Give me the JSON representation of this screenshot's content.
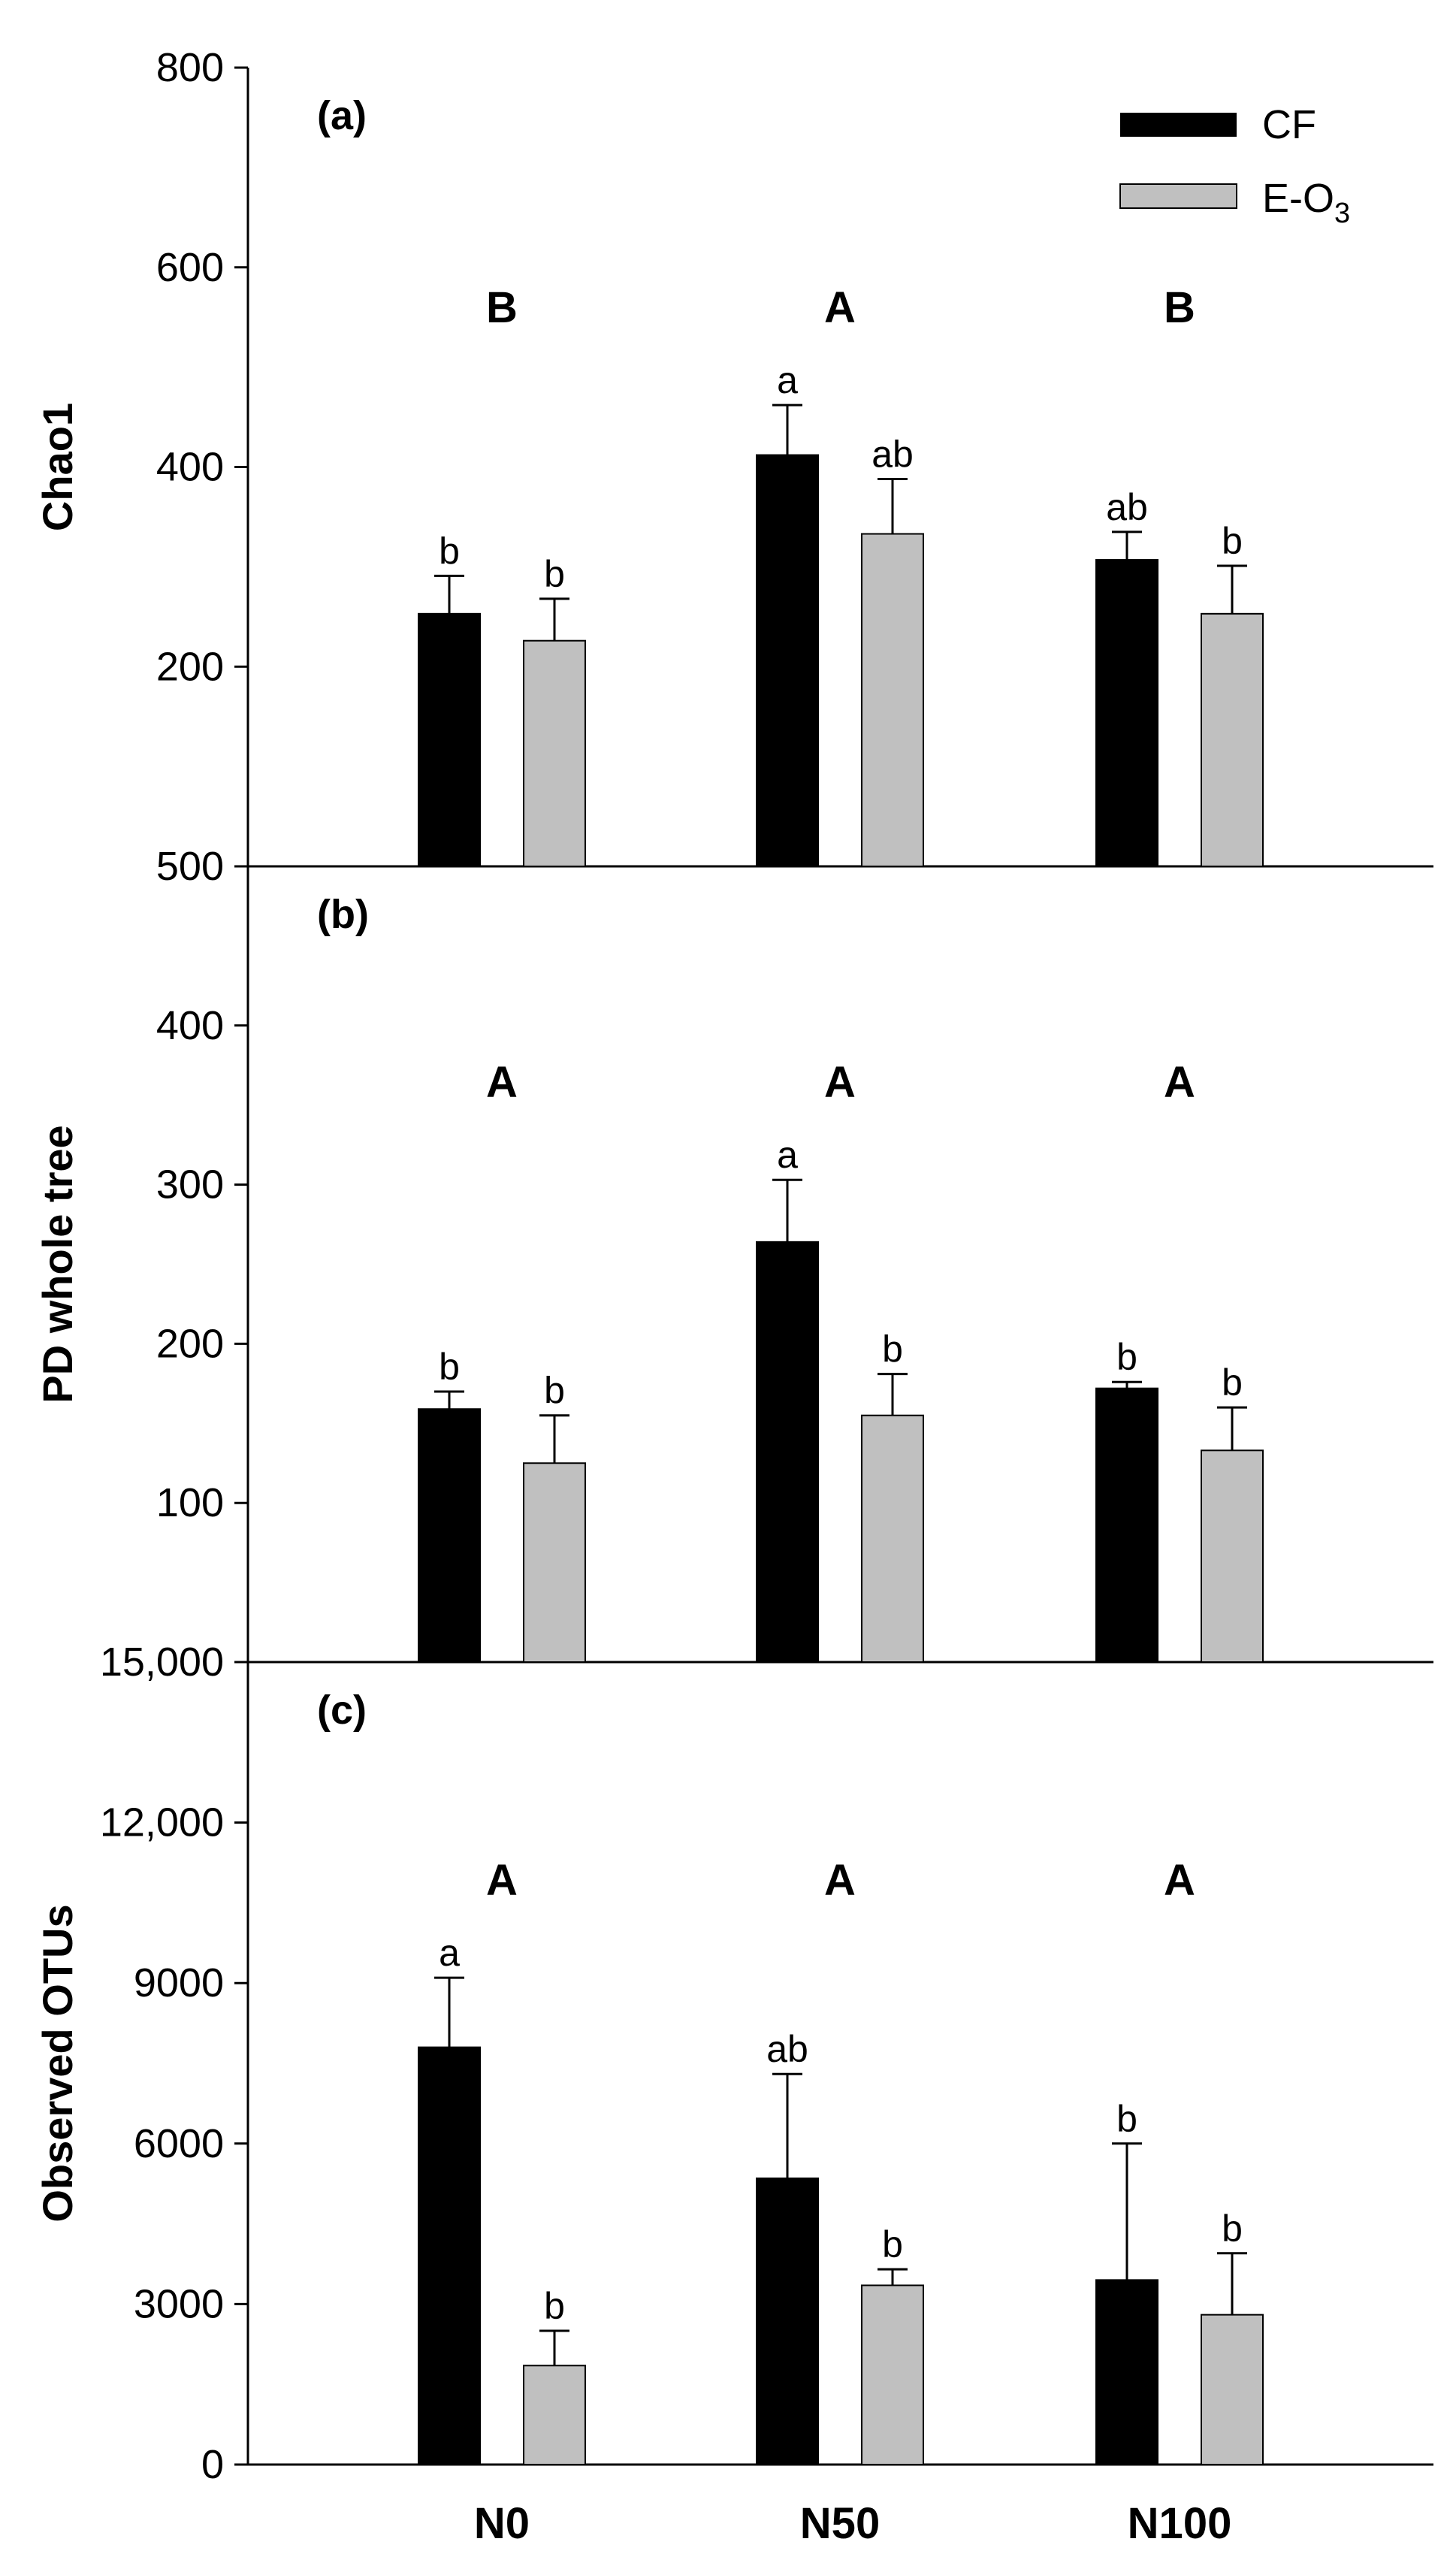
{
  "chart_data": {
    "type": "bar",
    "categories": [
      "N0",
      "N50",
      "N100"
    ],
    "legend": [
      {
        "name": "CF",
        "color": "#000000"
      },
      {
        "name": "E-O",
        "subscript": "3",
        "color": "#c0c0c0"
      }
    ],
    "panels": [
      {
        "tag": "(a)",
        "ylabel": "Chao1",
        "ylim": [
          0,
          800
        ],
        "ticks": [
          {
            "value": 200,
            "label": "200"
          },
          {
            "value": 400,
            "label": "400"
          },
          {
            "value": 600,
            "label": "600"
          },
          {
            "value": 800,
            "label": "800"
          }
        ],
        "group_letters": [
          "B",
          "A",
          "B"
        ],
        "series": [
          {
            "name": "CF",
            "values": [
              253,
              412,
              307
            ],
            "errors": [
              38,
              50,
              28
            ],
            "letters": [
              "b",
              "a",
              "ab"
            ]
          },
          {
            "name": "E-O3",
            "values": [
              226,
              333,
              253
            ],
            "errors": [
              42,
              55,
              48
            ],
            "letters": [
              "b",
              "ab",
              "b"
            ]
          }
        ]
      },
      {
        "tag": "(b)",
        "ylabel": "PD whole tree",
        "ylim": [
          0,
          500
        ],
        "ticks": [
          {
            "value": 100,
            "label": "100"
          },
          {
            "value": 200,
            "label": "200"
          },
          {
            "value": 300,
            "label": "300"
          },
          {
            "value": 400,
            "label": "400"
          },
          {
            "value": 500,
            "label": "500"
          }
        ],
        "group_letters": [
          "A",
          "A",
          "A"
        ],
        "series": [
          {
            "name": "CF",
            "values": [
              159,
              264,
              172
            ],
            "errors": [
              11,
              39,
              4
            ],
            "letters": [
              "b",
              "a",
              "b"
            ]
          },
          {
            "name": "E-O3",
            "values": [
              125,
              155,
              133
            ],
            "errors": [
              30,
              26,
              27
            ],
            "letters": [
              "b",
              "b",
              "b"
            ]
          }
        ]
      },
      {
        "tag": "(c)",
        "ylabel": "Observed OTUs",
        "ylim": [
          0,
          15000
        ],
        "ticks": [
          {
            "value": 0,
            "label": "0"
          },
          {
            "value": 3000,
            "label": "3000"
          },
          {
            "value": 6000,
            "label": "6000"
          },
          {
            "value": 9000,
            "label": "9000"
          },
          {
            "value": 12000,
            "label": "12,000"
          },
          {
            "value": 15000,
            "label": "15,000"
          }
        ],
        "group_letters": [
          "A",
          "A",
          "A"
        ],
        "series": [
          {
            "name": "CF",
            "values": [
              7800,
              5350,
              3450
            ],
            "errors": [
              1300,
              1950,
              2550
            ],
            "letters": [
              "a",
              "ab",
              "b"
            ]
          },
          {
            "name": "E-O3",
            "values": [
              1850,
              3350,
              2800
            ],
            "errors": [
              650,
              300,
              1150
            ],
            "letters": [
              "b",
              "b",
              "b"
            ]
          }
        ]
      }
    ]
  }
}
